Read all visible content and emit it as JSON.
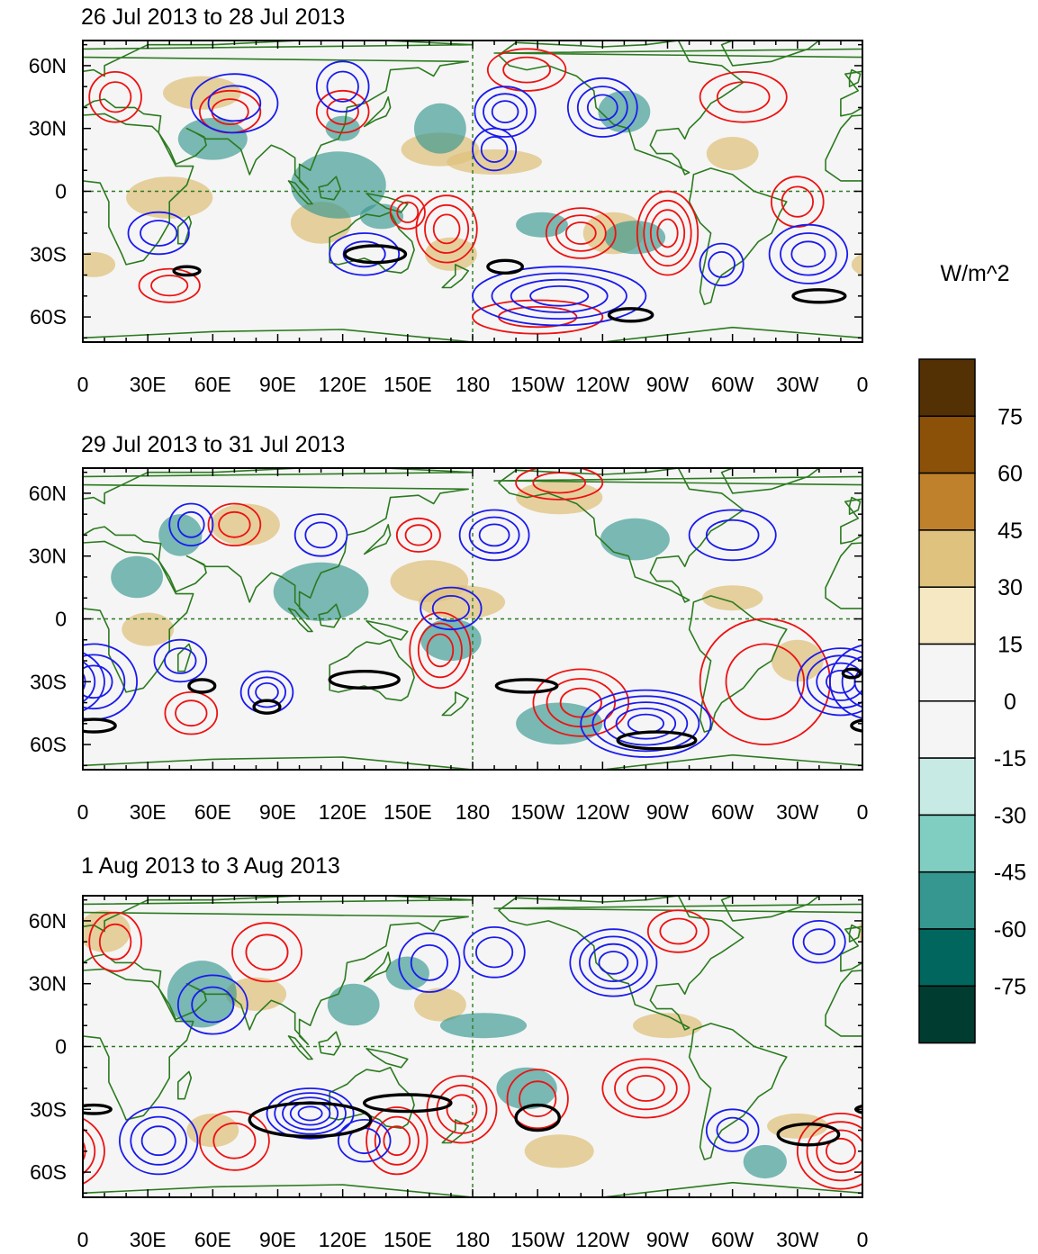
{
  "panels": [
    {
      "title": "26 Jul 2013 to 28 Jul 2013",
      "features": {
        "pos": [
          [
            40,
            -3,
            20,
            10
          ],
          [
            55,
            47,
            18,
            8
          ],
          [
            110,
            -15,
            14,
            10
          ],
          [
            165,
            20,
            18,
            8
          ],
          [
            190,
            14,
            22,
            6
          ],
          [
            245,
            -20,
            14,
            10
          ],
          [
            300,
            18,
            12,
            8
          ],
          [
            5,
            -35,
            10,
            6
          ],
          [
            170,
            -30,
            12,
            8
          ]
        ],
        "neg": [
          [
            118,
            3,
            22,
            16
          ],
          [
            60,
            25,
            16,
            10
          ],
          [
            165,
            30,
            12,
            12
          ],
          [
            212,
            -16,
            12,
            6
          ],
          [
            255,
            -22,
            14,
            8
          ],
          [
            250,
            38,
            12,
            10
          ],
          [
            138,
            -12,
            10,
            6
          ],
          [
            120,
            30,
            8,
            6
          ]
        ],
        "red": [
          [
            15,
            45,
            12,
            12,
            2
          ],
          [
            68,
            38,
            14,
            10,
            2
          ],
          [
            120,
            38,
            12,
            10,
            2
          ],
          [
            168,
            -18,
            14,
            16,
            3
          ],
          [
            230,
            -20,
            16,
            12,
            3
          ],
          [
            270,
            -20,
            14,
            20,
            4
          ],
          [
            330,
            -5,
            12,
            12,
            2
          ],
          [
            205,
            58,
            18,
            10,
            2
          ],
          [
            305,
            45,
            20,
            12,
            2
          ],
          [
            210,
            -60,
            30,
            8,
            2
          ],
          [
            40,
            -45,
            14,
            8,
            2
          ],
          [
            150,
            -10,
            8,
            8,
            2
          ]
        ],
        "blue": [
          [
            35,
            -20,
            14,
            10,
            2
          ],
          [
            130,
            -30,
            16,
            10,
            2
          ],
          [
            220,
            -50,
            40,
            14,
            4
          ],
          [
            195,
            38,
            14,
            12,
            3
          ],
          [
            240,
            40,
            16,
            14,
            3
          ],
          [
            335,
            -30,
            18,
            14,
            3
          ],
          [
            70,
            42,
            20,
            14,
            2
          ],
          [
            120,
            50,
            12,
            12,
            2
          ],
          [
            190,
            20,
            10,
            10,
            2
          ],
          [
            295,
            -35,
            10,
            10,
            2
          ]
        ],
        "black": [
          [
            48,
            -38,
            6,
            2
          ],
          [
            135,
            -30,
            14,
            4
          ],
          [
            195,
            -36,
            8,
            3
          ],
          [
            253,
            -59,
            10,
            3
          ],
          [
            340,
            -50,
            12,
            3
          ]
        ]
      }
    },
    {
      "title": "29 Jul 2013 to 31 Jul 2013",
      "features": {
        "pos": [
          [
            75,
            45,
            16,
            10
          ],
          [
            160,
            18,
            18,
            10
          ],
          [
            175,
            8,
            20,
            8
          ],
          [
            300,
            10,
            14,
            6
          ],
          [
            30,
            -5,
            12,
            8
          ],
          [
            220,
            58,
            20,
            8
          ],
          [
            330,
            -20,
            12,
            10
          ]
        ],
        "neg": [
          [
            110,
            13,
            22,
            14
          ],
          [
            170,
            -10,
            14,
            10
          ],
          [
            45,
            40,
            10,
            10
          ],
          [
            255,
            38,
            16,
            10
          ],
          [
            220,
            -50,
            20,
            10
          ],
          [
            25,
            20,
            12,
            10
          ]
        ],
        "red": [
          [
            70,
            45,
            12,
            10,
            2
          ],
          [
            165,
            -15,
            14,
            18,
            3
          ],
          [
            230,
            -40,
            22,
            16,
            3
          ],
          [
            315,
            -30,
            30,
            30,
            2
          ],
          [
            50,
            -45,
            12,
            10,
            2
          ],
          [
            155,
            40,
            10,
            8,
            2
          ],
          [
            220,
            65,
            20,
            8,
            2
          ]
        ],
        "blue": [
          [
            5,
            -30,
            20,
            18,
            3
          ],
          [
            45,
            -20,
            12,
            10,
            2
          ],
          [
            85,
            -35,
            12,
            10,
            3
          ],
          [
            190,
            40,
            16,
            12,
            3
          ],
          [
            260,
            -50,
            30,
            16,
            5
          ],
          [
            350,
            -30,
            20,
            16,
            4
          ],
          [
            50,
            45,
            10,
            10,
            2
          ],
          [
            110,
            40,
            12,
            10,
            2
          ],
          [
            170,
            5,
            14,
            10,
            2
          ],
          [
            300,
            40,
            20,
            12,
            2
          ]
        ],
        "black": [
          [
            5,
            -51,
            10,
            3
          ],
          [
            55,
            -32,
            6,
            3
          ],
          [
            85,
            -42,
            6,
            3
          ],
          [
            130,
            -29,
            16,
            4
          ],
          [
            205,
            -32,
            14,
            3
          ],
          [
            265,
            -58,
            18,
            4
          ],
          [
            355,
            -26,
            4,
            2
          ]
        ]
      }
    },
    {
      "title": "1 Aug 2013 to 3 Aug 2013",
      "features": {
        "pos": [
          [
            10,
            55,
            12,
            10
          ],
          [
            80,
            25,
            14,
            8
          ],
          [
            165,
            20,
            12,
            8
          ],
          [
            270,
            10,
            16,
            6
          ],
          [
            60,
            -40,
            12,
            8
          ],
          [
            220,
            -50,
            16,
            8
          ],
          [
            330,
            -38,
            14,
            6
          ]
        ],
        "neg": [
          [
            55,
            25,
            16,
            16
          ],
          [
            185,
            10,
            20,
            6
          ],
          [
            205,
            -20,
            14,
            10
          ],
          [
            125,
            20,
            12,
            10
          ],
          [
            150,
            35,
            10,
            8
          ],
          [
            315,
            -55,
            10,
            8
          ]
        ],
        "red": [
          [
            15,
            50,
            12,
            14,
            2
          ],
          [
            175,
            -30,
            16,
            16,
            3
          ],
          [
            145,
            -45,
            14,
            16,
            3
          ],
          [
            210,
            -25,
            14,
            14,
            2
          ],
          [
            260,
            -20,
            20,
            14,
            3
          ],
          [
            350,
            -50,
            20,
            18,
            4
          ],
          [
            70,
            -45,
            16,
            14,
            2
          ],
          [
            275,
            55,
            14,
            10,
            2
          ],
          [
            85,
            45,
            16,
            14,
            2
          ]
        ],
        "blue": [
          [
            105,
            -32,
            20,
            12,
            5
          ],
          [
            35,
            -45,
            18,
            16,
            3
          ],
          [
            160,
            40,
            14,
            14,
            2
          ],
          [
            245,
            40,
            20,
            16,
            4
          ],
          [
            190,
            45,
            14,
            12,
            2
          ],
          [
            300,
            -40,
            12,
            10,
            2
          ],
          [
            340,
            50,
            12,
            10,
            2
          ],
          [
            60,
            20,
            16,
            14,
            2
          ],
          [
            130,
            -45,
            12,
            10,
            2
          ]
        ],
        "black": [
          [
            105,
            -35,
            28,
            8
          ],
          [
            150,
            -27,
            20,
            4
          ],
          [
            210,
            -34,
            10,
            6
          ],
          [
            335,
            -42,
            14,
            5
          ],
          [
            5,
            -30,
            8,
            2
          ]
        ]
      }
    }
  ],
  "x_ticks": [
    "0",
    "30E",
    "60E",
    "90E",
    "120E",
    "150E",
    "180",
    "150W",
    "120W",
    "90W",
    "60W",
    "30W",
    "0"
  ],
  "y_ticks": [
    "60N",
    "30N",
    "0",
    "30S",
    "60S"
  ],
  "colorbar": {
    "units": "W/m^2",
    "labels": [
      "75",
      "60",
      "45",
      "30",
      "15",
      "0",
      "-15",
      "-30",
      "-45",
      "-60",
      "-75"
    ],
    "colors": [
      "#543005",
      "#8c5109",
      "#bf812c",
      "#dfc27d",
      "#f6e8c3",
      "#f5f5f5",
      "#f5f5f5",
      "#c7eae5",
      "#80cdc1",
      "#35978f",
      "#01665e",
      "#003c30"
    ]
  },
  "colors": {
    "coast": "#2b7a1f",
    "red_contour": "#ee1111",
    "blue_contour": "#1a1aee",
    "black_contour": "#000000",
    "pos_fill": "#dfc27d",
    "neg_fill": "#35978f",
    "ocean": "#f5f5f5"
  }
}
